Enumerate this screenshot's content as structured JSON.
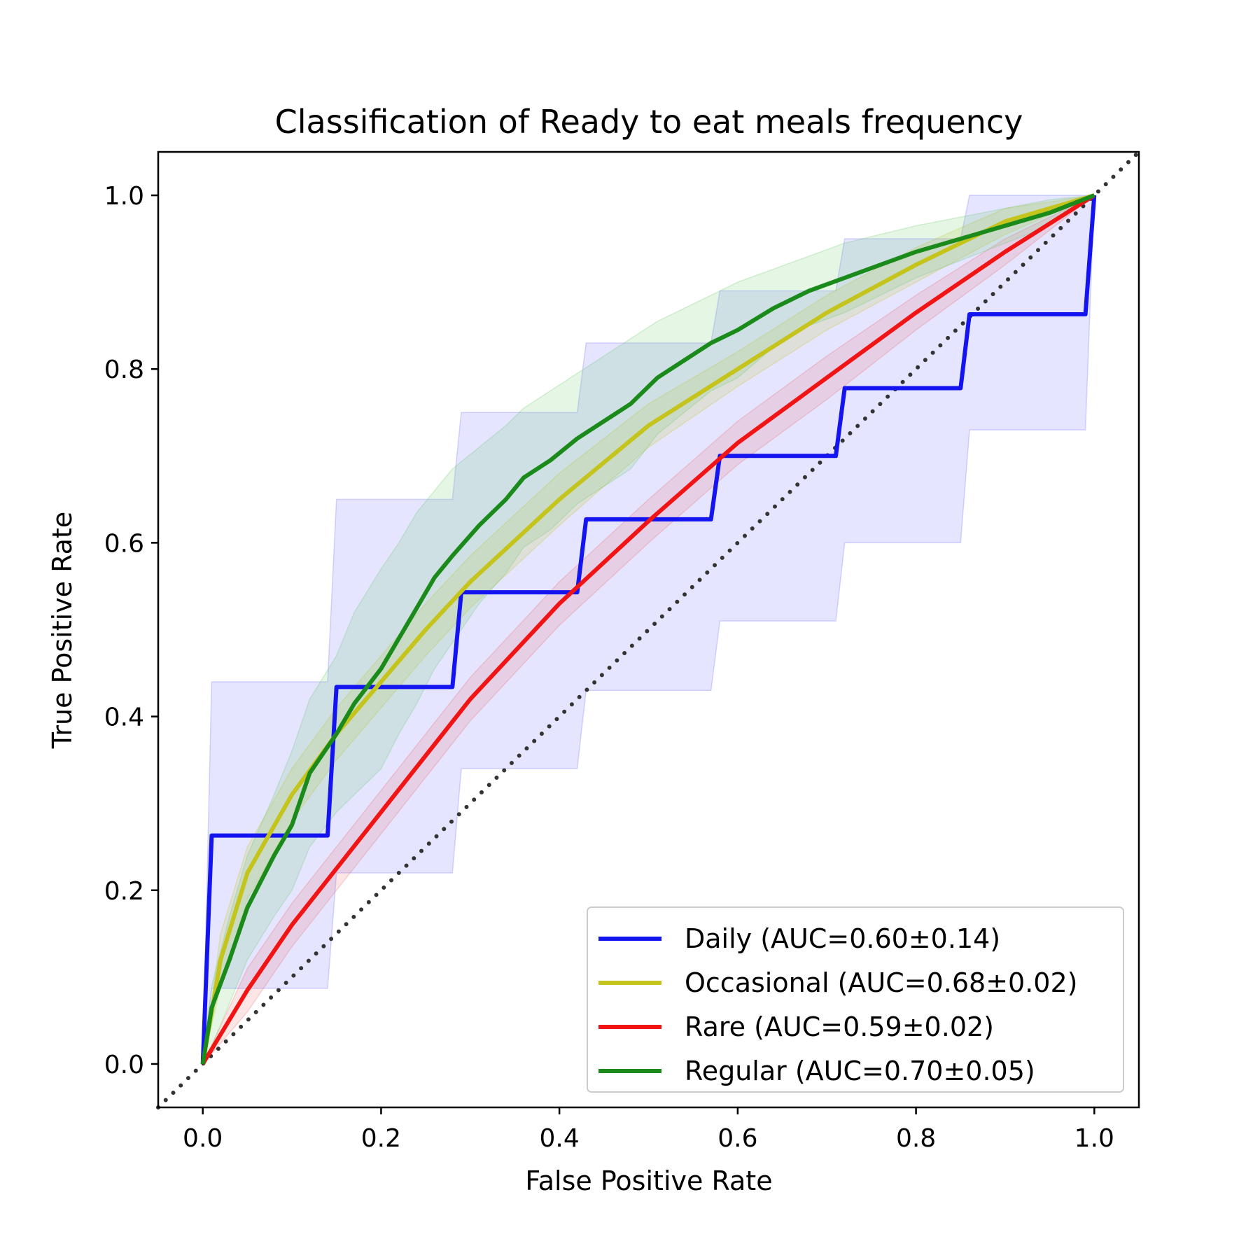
{
  "chart_data": {
    "type": "line",
    "title": "Classification of Ready to eat meals frequency",
    "xlabel": "False Positive Rate",
    "ylabel": "True Positive Rate",
    "xlim": [
      -0.05,
      1.05
    ],
    "ylim": [
      -0.05,
      1.05
    ],
    "xticks": [
      "0.0",
      "0.2",
      "0.4",
      "0.6",
      "0.8",
      "1.0"
    ],
    "yticks": [
      "0.0",
      "0.2",
      "0.4",
      "0.6",
      "0.8",
      "1.0"
    ],
    "grid": false,
    "legend_position": "lower-right",
    "reference_line": {
      "x": [
        -0.05,
        1.05
      ],
      "y": [
        -0.05,
        1.05
      ],
      "style": "dotted",
      "color": "#333333"
    },
    "series": [
      {
        "name": "Daily (AUC=0.60±0.14)",
        "color": "#1414f0",
        "band_color": "#6464ff",
        "x": [
          0,
          0.01,
          0.14,
          0.15,
          0.28,
          0.29,
          0.42,
          0.43,
          0.57,
          0.58,
          0.71,
          0.72,
          0.85,
          0.86,
          0.99,
          1.0
        ],
        "y": [
          0,
          0.263,
          0.263,
          0.434,
          0.434,
          0.543,
          0.543,
          0.627,
          0.627,
          0.7,
          0.7,
          0.778,
          0.778,
          0.863,
          0.863,
          1.0
        ],
        "upper": [
          0,
          0.44,
          0.44,
          0.65,
          0.65,
          0.75,
          0.75,
          0.83,
          0.83,
          0.89,
          0.89,
          0.95,
          0.95,
          1.0,
          1.0,
          1.0
        ],
        "lower": [
          0,
          0.087,
          0.087,
          0.22,
          0.22,
          0.34,
          0.34,
          0.43,
          0.43,
          0.51,
          0.51,
          0.6,
          0.6,
          0.73,
          0.73,
          1.0
        ]
      },
      {
        "name": "Occasional (AUC=0.68±0.02)",
        "color": "#c4c41c",
        "band_color": "#c4c41c",
        "x": [
          0,
          0.02,
          0.05,
          0.1,
          0.15,
          0.2,
          0.25,
          0.3,
          0.4,
          0.5,
          0.6,
          0.7,
          0.8,
          0.9,
          1.0
        ],
        "y": [
          0,
          0.12,
          0.22,
          0.31,
          0.38,
          0.44,
          0.5,
          0.555,
          0.65,
          0.735,
          0.8,
          0.865,
          0.92,
          0.97,
          1.0
        ],
        "upper": [
          0,
          0.15,
          0.25,
          0.34,
          0.41,
          0.47,
          0.53,
          0.585,
          0.68,
          0.76,
          0.82,
          0.885,
          0.94,
          0.985,
          1.0
        ],
        "lower": [
          0,
          0.09,
          0.19,
          0.28,
          0.35,
          0.41,
          0.47,
          0.525,
          0.62,
          0.71,
          0.78,
          0.845,
          0.9,
          0.955,
          1.0
        ]
      },
      {
        "name": "Rare (AUC=0.59±0.02)",
        "color": "#f01414",
        "band_color": "#f06464",
        "x": [
          0,
          0.05,
          0.1,
          0.2,
          0.3,
          0.4,
          0.5,
          0.6,
          0.7,
          0.8,
          0.9,
          1.0
        ],
        "y": [
          0,
          0.085,
          0.16,
          0.29,
          0.42,
          0.53,
          0.625,
          0.715,
          0.79,
          0.865,
          0.935,
          1.0
        ],
        "upper": [
          0,
          0.11,
          0.185,
          0.315,
          0.445,
          0.555,
          0.65,
          0.74,
          0.815,
          0.885,
          0.95,
          1.0
        ],
        "lower": [
          0,
          0.06,
          0.135,
          0.265,
          0.395,
          0.505,
          0.6,
          0.69,
          0.765,
          0.845,
          0.92,
          1.0
        ]
      },
      {
        "name": "Regular (AUC=0.70±0.05)",
        "color": "#1a8a1a",
        "band_color": "#64c864",
        "x": [
          0,
          0.01,
          0.03,
          0.05,
          0.08,
          0.1,
          0.12,
          0.15,
          0.17,
          0.2,
          0.22,
          0.24,
          0.26,
          0.28,
          0.31,
          0.34,
          0.36,
          0.39,
          0.42,
          0.45,
          0.48,
          0.51,
          0.54,
          0.57,
          0.6,
          0.64,
          0.68,
          0.72,
          0.76,
          0.8,
          0.85,
          0.9,
          0.95,
          1.0
        ],
        "y": [
          0,
          0.065,
          0.12,
          0.18,
          0.24,
          0.275,
          0.335,
          0.38,
          0.415,
          0.455,
          0.49,
          0.525,
          0.56,
          0.585,
          0.62,
          0.65,
          0.675,
          0.695,
          0.72,
          0.74,
          0.76,
          0.79,
          0.81,
          0.83,
          0.845,
          0.87,
          0.89,
          0.905,
          0.92,
          0.935,
          0.95,
          0.965,
          0.98,
          1.0
        ],
        "upper": [
          0,
          0.09,
          0.17,
          0.24,
          0.31,
          0.36,
          0.42,
          0.47,
          0.52,
          0.57,
          0.6,
          0.635,
          0.66,
          0.685,
          0.71,
          0.735,
          0.755,
          0.775,
          0.795,
          0.815,
          0.835,
          0.855,
          0.87,
          0.885,
          0.9,
          0.915,
          0.93,
          0.945,
          0.955,
          0.965,
          0.975,
          0.985,
          0.995,
          1.0
        ],
        "lower": [
          0,
          0.02,
          0.07,
          0.12,
          0.17,
          0.2,
          0.25,
          0.29,
          0.31,
          0.34,
          0.38,
          0.415,
          0.455,
          0.485,
          0.53,
          0.565,
          0.595,
          0.615,
          0.645,
          0.665,
          0.685,
          0.725,
          0.75,
          0.775,
          0.79,
          0.825,
          0.85,
          0.865,
          0.885,
          0.905,
          0.925,
          0.945,
          0.965,
          1.0
        ]
      }
    ]
  }
}
